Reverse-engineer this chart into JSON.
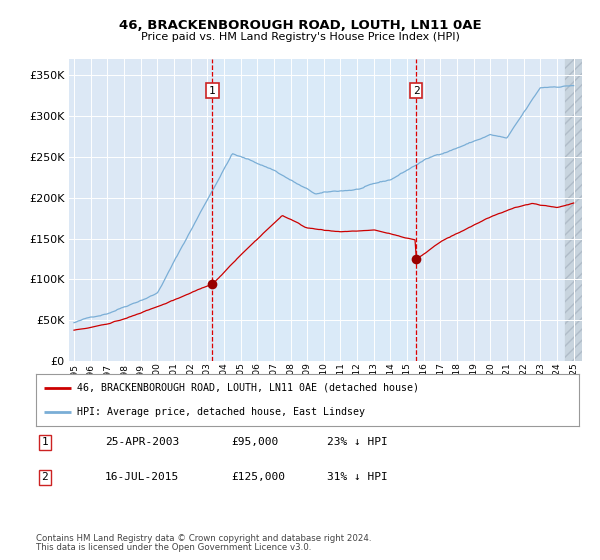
{
  "title": "46, BRACKENBOROUGH ROAD, LOUTH, LN11 0AE",
  "subtitle": "Price paid vs. HM Land Registry's House Price Index (HPI)",
  "ylim": [
    0,
    370000
  ],
  "yticks": [
    0,
    50000,
    100000,
    150000,
    200000,
    250000,
    300000,
    350000
  ],
  "xlim_start": 1994.7,
  "xlim_end": 2025.5,
  "xticks": [
    1995,
    1996,
    1997,
    1998,
    1999,
    2000,
    2001,
    2002,
    2003,
    2004,
    2005,
    2006,
    2007,
    2008,
    2009,
    2010,
    2011,
    2012,
    2013,
    2014,
    2015,
    2016,
    2017,
    2018,
    2019,
    2020,
    2021,
    2022,
    2023,
    2024,
    2025
  ],
  "purchase1_x": 2003.31,
  "purchase1_y": 95000,
  "purchase2_x": 2015.54,
  "purchase2_y": 125000,
  "red_line_color": "#cc0000",
  "blue_line_color": "#7aaed6",
  "vline_color": "#dd0000",
  "legend_label1": "46, BRACKENBOROUGH ROAD, LOUTH, LN11 0AE (detached house)",
  "legend_label2": "HPI: Average price, detached house, East Lindsey",
  "table_row1": [
    "1",
    "25-APR-2003",
    "£95,000",
    "23% ↓ HPI"
  ],
  "table_row2": [
    "2",
    "16-JUL-2015",
    "£125,000",
    "31% ↓ HPI"
  ],
  "footer1": "Contains HM Land Registry data © Crown copyright and database right 2024.",
  "footer2": "This data is licensed under the Open Government Licence v3.0.",
  "bg_color": "#dce8f5",
  "highlight_color": "#daeaf8",
  "hatch_bg": "#d0d8e0"
}
